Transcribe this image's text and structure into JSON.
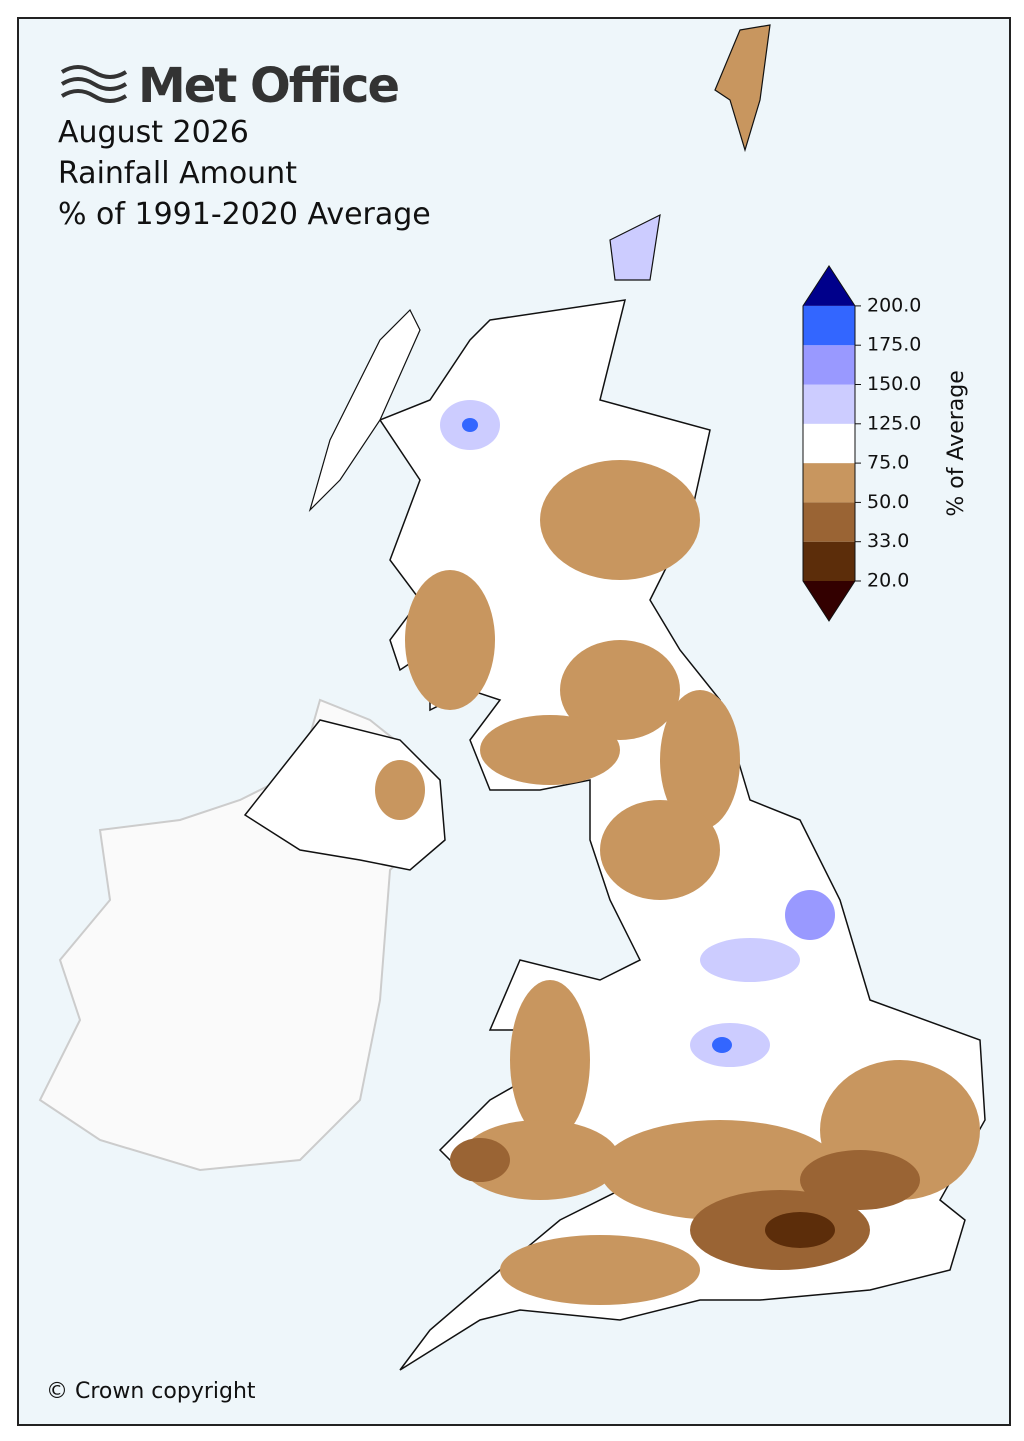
{
  "header": {
    "logo": "Met Office",
    "title_lines": [
      "August 2026",
      "Rainfall Amount",
      "% of 1991-2020 Average"
    ]
  },
  "colorbar": {
    "label": "% of Average",
    "ticks": [
      {
        "value": 20,
        "label": "20.0"
      },
      {
        "value": 33,
        "label": "33.0"
      },
      {
        "value": 50,
        "label": "50.0"
      },
      {
        "value": 75,
        "label": "75.0"
      },
      {
        "value": 125,
        "label": "125.0"
      },
      {
        "value": 150,
        "label": "150.0"
      },
      {
        "value": 175,
        "label": "175.0"
      },
      {
        "value": 200,
        "label": "200.0"
      }
    ],
    "colors": [
      "#5c2d0a",
      "#9a6434",
      "#c8965f",
      "#ffffff",
      "#ccccff",
      "#9999ff",
      "#3366ff"
    ],
    "under_color": "#330000",
    "over_color": "#00008b"
  },
  "footer": "© Crown copyright"
}
